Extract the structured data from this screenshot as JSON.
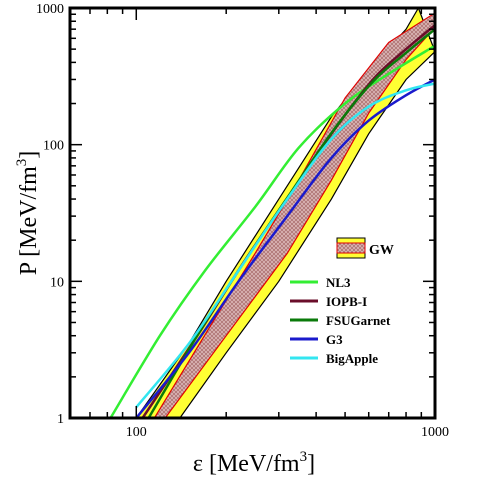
{
  "chart_data": {
    "type": "line",
    "xlabel": "ε [MeV/fm",
    "xlabel_sup": "3",
    "xlabel_close": "]",
    "ylabel": "P [MeV/fm",
    "ylabel_sup": "3",
    "ylabel_close": "]",
    "xscale": "log",
    "yscale": "log",
    "xlim": [
      60,
      1000
    ],
    "ylim": [
      1,
      1000
    ],
    "x_ticks": [
      {
        "value": 100,
        "label": "100"
      },
      {
        "value": 1000,
        "label": "1000"
      }
    ],
    "y_ticks": [
      {
        "value": 1,
        "label": "1"
      },
      {
        "value": 10,
        "label": "10"
      },
      {
        "value": 100,
        "label": "100"
      },
      {
        "value": 1000,
        "label": "1000"
      }
    ],
    "grid": false,
    "legend_placement": "right",
    "bands": [
      {
        "name": "GW",
        "outer_lower": [
          [
            140,
            1
          ],
          [
            200,
            3
          ],
          [
            300,
            10
          ],
          [
            450,
            40
          ],
          [
            600,
            120
          ],
          [
            800,
            300
          ],
          [
            1000,
            480
          ]
        ],
        "outer_upper": [
          [
            100,
            1
          ],
          [
            150,
            3.5
          ],
          [
            200,
            10
          ],
          [
            300,
            40
          ],
          [
            450,
            160
          ],
          [
            600,
            350
          ],
          [
            800,
            700
          ],
          [
            880,
            1000
          ]
        ],
        "inner_lower": [
          [
            125,
            1
          ],
          [
            200,
            4
          ],
          [
            320,
            16
          ],
          [
            450,
            55
          ],
          [
            600,
            170
          ],
          [
            800,
            420
          ],
          [
            1000,
            720
          ]
        ],
        "inner_upper": [
          [
            115,
            1
          ],
          [
            180,
            5
          ],
          [
            250,
            16
          ],
          [
            350,
            55
          ],
          [
            500,
            220
          ],
          [
            700,
            560
          ],
          [
            1000,
            920
          ]
        ],
        "outer_color": "#ffff33",
        "inner_color": "#d9a6a6",
        "inner_edge_color": "#e00000"
      }
    ],
    "series": [
      {
        "name": "NL3",
        "color": "#33ee33",
        "points": [
          [
            82,
            1
          ],
          [
            120,
            4
          ],
          [
            170,
            12
          ],
          [
            250,
            35
          ],
          [
            350,
            95
          ],
          [
            500,
            200
          ],
          [
            700,
            330
          ],
          [
            1000,
            530
          ]
        ]
      },
      {
        "name": "IOPB-I",
        "color": "#6a0d2a",
        "points": [
          [
            105,
            1
          ],
          [
            160,
            4
          ],
          [
            230,
            14
          ],
          [
            320,
            40
          ],
          [
            450,
            120
          ],
          [
            620,
            300
          ],
          [
            800,
            500
          ],
          [
            1000,
            750
          ]
        ]
      },
      {
        "name": "FSUGarnet",
        "color": "#0a7a0a",
        "points": [
          [
            110,
            1
          ],
          [
            170,
            5
          ],
          [
            240,
            16
          ],
          [
            330,
            45
          ],
          [
            460,
            130
          ],
          [
            620,
            290
          ],
          [
            800,
            470
          ],
          [
            1000,
            700
          ]
        ]
      },
      {
        "name": "G3",
        "color": "#1a1acc",
        "points": [
          [
            100,
            1
          ],
          [
            150,
            3
          ],
          [
            220,
            10
          ],
          [
            320,
            30
          ],
          [
            450,
            80
          ],
          [
            600,
            150
          ],
          [
            800,
            230
          ],
          [
            1000,
            300
          ]
        ]
      },
      {
        "name": "BigApple",
        "color": "#33e6f0",
        "points": [
          [
            100,
            1.2
          ],
          [
            150,
            3.5
          ],
          [
            220,
            12
          ],
          [
            320,
            40
          ],
          [
            450,
            110
          ],
          [
            600,
            190
          ],
          [
            800,
            250
          ],
          [
            1000,
            280
          ]
        ]
      }
    ]
  }
}
